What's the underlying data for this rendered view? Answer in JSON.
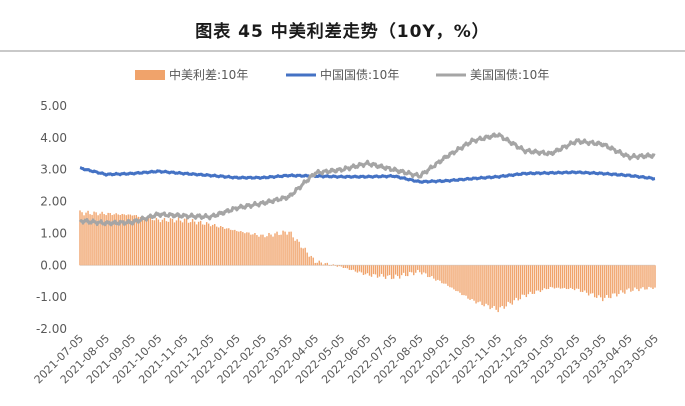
{
  "chart_data": {
    "type": "line",
    "title": "图表 45 中美利差走势（10Y，%）",
    "xlabel": "",
    "ylabel": "",
    "ylim": [
      -2.0,
      5.0
    ],
    "yticks": [
      "5.00",
      "4.00",
      "3.00",
      "2.00",
      "1.00",
      "0.00",
      "-1.00",
      "-2.00"
    ],
    "grid": false,
    "legend_position": "top",
    "categories": [
      "2021-07-05",
      "2021-08-05",
      "2021-09-05",
      "2021-10-05",
      "2021-11-05",
      "2021-12-05",
      "2022-01-05",
      "2022-02-05",
      "2022-03-05",
      "2022-04-05",
      "2022-05-05",
      "2022-06-05",
      "2022-07-05",
      "2022-08-05",
      "2022-09-05",
      "2022-10-05",
      "2022-11-05",
      "2022-12-05",
      "2023-01-05",
      "2023-02-05",
      "2023-03-05",
      "2023-04-05",
      "2023-05-05"
    ],
    "series": [
      {
        "name": "中美利差:10年",
        "kind": "bar",
        "color": "#f0a36b",
        "values": [
          1.65,
          1.62,
          1.58,
          1.42,
          1.42,
          1.28,
          1.08,
          0.92,
          1.05,
          0.12,
          -0.05,
          -0.3,
          -0.38,
          -0.2,
          -0.6,
          -1.1,
          -1.4,
          -0.95,
          -0.7,
          -0.75,
          -1.05,
          -0.78,
          -0.7
        ]
      },
      {
        "name": "中国国债:10年",
        "kind": "line",
        "color": "#4472c4",
        "values": [
          3.05,
          2.85,
          2.88,
          2.95,
          2.88,
          2.82,
          2.75,
          2.75,
          2.82,
          2.8,
          2.78,
          2.78,
          2.8,
          2.62,
          2.65,
          2.72,
          2.78,
          2.88,
          2.9,
          2.92,
          2.88,
          2.82,
          2.72
        ]
      },
      {
        "name": "美国国债:10年",
        "kind": "line",
        "color": "#a5a5a5",
        "values": [
          1.4,
          1.32,
          1.35,
          1.6,
          1.55,
          1.52,
          1.8,
          1.95,
          2.15,
          2.9,
          3.0,
          3.2,
          3.0,
          2.8,
          3.4,
          3.9,
          4.1,
          3.6,
          3.5,
          3.9,
          3.8,
          3.4,
          3.45
        ]
      }
    ]
  }
}
